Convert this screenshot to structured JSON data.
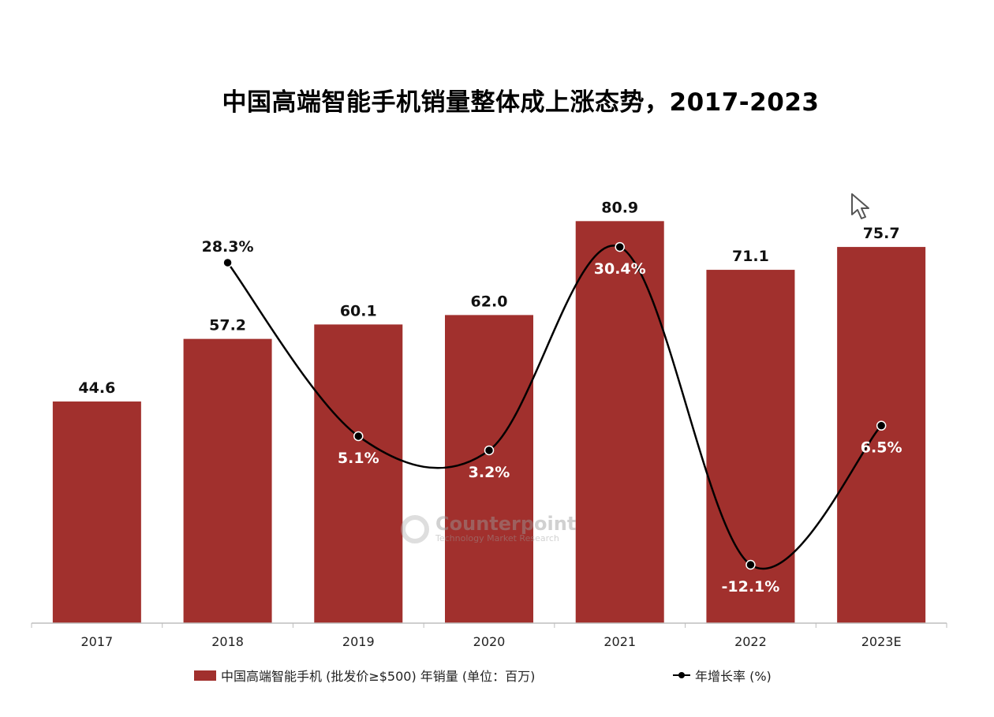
{
  "chart_data": {
    "type": "bar",
    "title": "中国高端智能手机销量整体成上涨态势，2017-2023",
    "categories": [
      "2017",
      "2018",
      "2019",
      "2020",
      "2021",
      "2022",
      "2023E"
    ],
    "series": [
      {
        "name": "中国高端智能手机 (批发价≥$500) 年销量 (单位：百万)",
        "type": "bar",
        "values": [
          44.6,
          57.2,
          60.1,
          62.0,
          80.9,
          71.1,
          75.7
        ],
        "labels": [
          "44.6",
          "57.2",
          "60.1",
          "62.0",
          "80.9",
          "71.1",
          "75.7"
        ],
        "color": "#a1302d"
      },
      {
        "name": "年增长率 (%)",
        "type": "line",
        "values": [
          null,
          28.3,
          5.1,
          3.2,
          30.4,
          -12.1,
          6.5
        ],
        "labels": [
          "",
          "28.3%",
          "5.1%",
          "3.2%",
          "30.4%",
          "-12.1%",
          "6.5%"
        ],
        "color": "#000000"
      }
    ],
    "grid": false,
    "legend_position": "bottom"
  },
  "watermark": {
    "name": "Counterpoint",
    "subtitle": "Technology Market Research"
  }
}
